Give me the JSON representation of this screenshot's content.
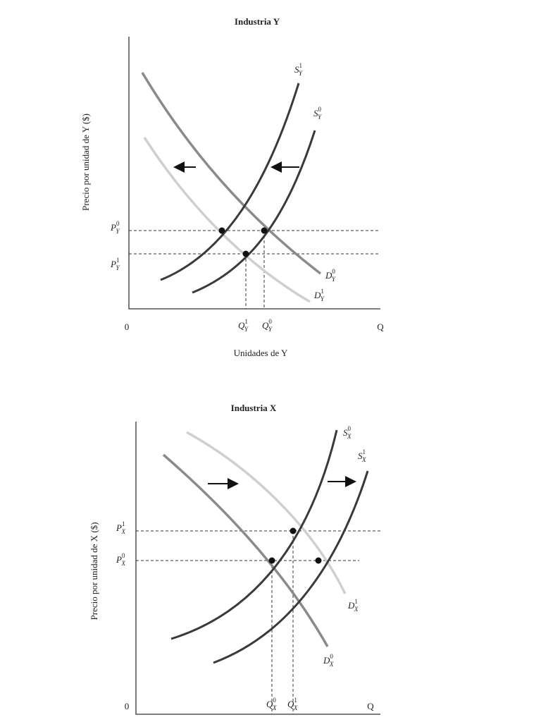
{
  "top": {
    "title": "Industria Y",
    "y_label": "Precio por unidad de Y ($)",
    "x_label": "Unidades de Y",
    "origin": "0",
    "x_end": "Q",
    "curves": [
      {
        "letter": "S",
        "sup": "1",
        "sub": "Y"
      },
      {
        "letter": "S",
        "sup": "0",
        "sub": "Y"
      },
      {
        "letter": "D",
        "sup": "0",
        "sub": "Y"
      },
      {
        "letter": "D",
        "sup": "1",
        "sub": "Y"
      }
    ],
    "prices": [
      {
        "letter": "P",
        "sup": "0",
        "sub": "Y"
      },
      {
        "letter": "P",
        "sup": "1",
        "sub": "Y"
      }
    ],
    "quantities": [
      {
        "letter": "Q",
        "sup": "1",
        "sub": "Y"
      },
      {
        "letter": "Q",
        "sup": "0",
        "sub": "Y"
      }
    ]
  },
  "bottom": {
    "title": "Industria X",
    "y_label": "Precio por unidad de X ($)",
    "origin": "0",
    "x_end": "Q",
    "curves": [
      {
        "letter": "S",
        "sup": "0",
        "sub": "X"
      },
      {
        "letter": "S",
        "sup": "1",
        "sub": "X"
      },
      {
        "letter": "D",
        "sup": "1",
        "sub": "X"
      },
      {
        "letter": "D",
        "sup": "0",
        "sub": "X"
      }
    ],
    "prices": [
      {
        "letter": "P",
        "sup": "1",
        "sub": "X"
      },
      {
        "letter": "P",
        "sup": "0",
        "sub": "X"
      }
    ],
    "quantities": [
      {
        "letter": "Q",
        "sup": "0",
        "sub": "X"
      },
      {
        "letter": "Q",
        "sup": "1",
        "sub": "X"
      }
    ]
  }
}
